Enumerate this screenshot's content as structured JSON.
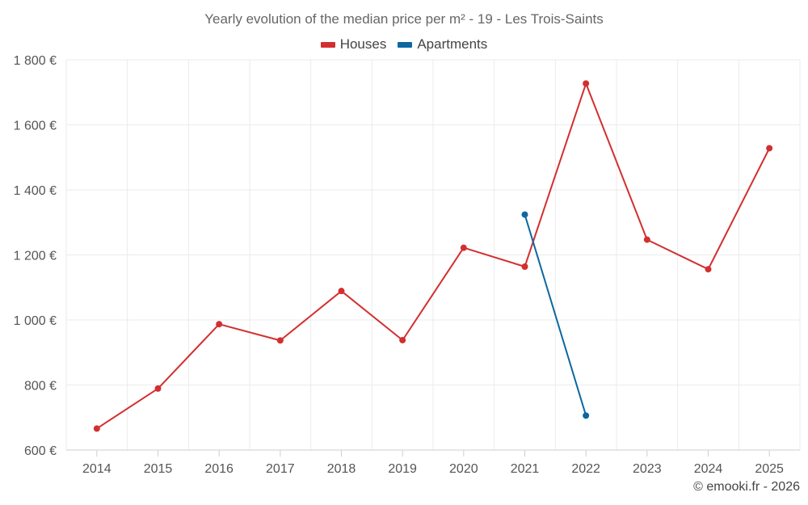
{
  "chart_data": {
    "type": "line",
    "title": "Yearly evolution of the median price per m² - 19 - Les Trois-Saints",
    "categories": [
      "2014",
      "2015",
      "2016",
      "2017",
      "2018",
      "2019",
      "2020",
      "2021",
      "2022",
      "2023",
      "2024",
      "2025"
    ],
    "series": [
      {
        "name": "Houses",
        "color": "#d32f2f",
        "values": [
          666,
          789,
          987,
          937,
          1089,
          938,
          1222,
          1164,
          1727,
          1247,
          1156,
          1528
        ]
      },
      {
        "name": "Apartments",
        "color": "#0d67a0",
        "values": [
          null,
          null,
          null,
          null,
          null,
          null,
          null,
          1324,
          706,
          null,
          null,
          null
        ]
      }
    ],
    "y_ticks": [
      "600 €",
      "800 €",
      "1 000 €",
      "1 200 €",
      "1 400 €",
      "1 600 €",
      "1 800 €"
    ],
    "y_tick_values": [
      600,
      800,
      1000,
      1200,
      1400,
      1600,
      1800
    ],
    "ylim": [
      600,
      1800
    ],
    "xlabel": "",
    "ylabel": "",
    "grid": true,
    "legend_position": "top-center"
  },
  "credit": "© emooki.fr - 2026"
}
